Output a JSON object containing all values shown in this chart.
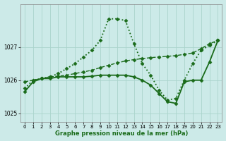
{
  "title": "Graphe pression niveau de la mer (hPa)",
  "bg_color": "#cceae8",
  "grid_color": "#aad4cc",
  "line_color": "#1a6b1a",
  "xlim": [
    -0.5,
    23.5
  ],
  "ylim": [
    1024.75,
    1028.3
  ],
  "yticks": [
    1025,
    1026,
    1027
  ],
  "xticks": [
    0,
    1,
    2,
    3,
    4,
    5,
    6,
    7,
    8,
    9,
    10,
    11,
    12,
    13,
    14,
    15,
    16,
    17,
    18,
    19,
    20,
    21,
    22,
    23
  ],
  "series": [
    {
      "x": [
        0,
        1,
        2,
        3,
        4,
        5,
        6,
        7,
        8,
        9,
        10,
        11,
        12,
        13,
        14,
        15,
        16,
        17,
        18,
        19,
        20,
        21,
        22,
        23
      ],
      "y": [
        1025.75,
        1026.0,
        1026.05,
        1026.1,
        1026.2,
        1026.35,
        1026.5,
        1026.7,
        1026.9,
        1027.2,
        1027.85,
        1027.85,
        1027.8,
        1027.1,
        1026.5,
        1026.15,
        1025.7,
        1025.4,
        1025.45,
        1026.0,
        1026.5,
        1026.9,
        1027.05,
        1027.2
      ],
      "style": ":",
      "marker": "D",
      "markersize": 2.5,
      "linewidth": 1.3
    },
    {
      "x": [
        0,
        1,
        2,
        3,
        4,
        5,
        6,
        7,
        8,
        9,
        10,
        11,
        12,
        13,
        14,
        15,
        16,
        17,
        18,
        19,
        20,
        21,
        22,
        23
      ],
      "y": [
        1025.95,
        1026.0,
        1026.05,
        1026.1,
        1026.12,
        1026.15,
        1026.2,
        1026.25,
        1026.3,
        1026.38,
        1026.45,
        1026.52,
        1026.58,
        1026.62,
        1026.65,
        1026.68,
        1026.7,
        1026.72,
        1026.74,
        1026.78,
        1026.82,
        1026.95,
        1027.1,
        1027.2
      ],
      "style": "--",
      "marker": "D",
      "markersize": 2.5,
      "linewidth": 1.0
    },
    {
      "x": [
        0,
        1,
        2,
        3,
        4,
        5,
        6,
        7,
        8,
        9,
        10,
        11,
        12,
        13,
        14,
        15,
        16,
        17,
        18,
        19,
        20,
        21,
        22,
        23
      ],
      "y": [
        1025.65,
        1025.95,
        1026.05,
        1026.05,
        1026.1,
        1026.1,
        1026.1,
        1026.1,
        1026.12,
        1026.15,
        1026.15,
        1026.15,
        1026.15,
        1026.1,
        1026.0,
        1025.85,
        1025.6,
        1025.35,
        1025.3,
        1025.95,
        1026.0,
        1026.0,
        1026.55,
        1027.2
      ],
      "style": "-",
      "marker": "D",
      "markersize": 2.5,
      "linewidth": 1.3
    }
  ]
}
